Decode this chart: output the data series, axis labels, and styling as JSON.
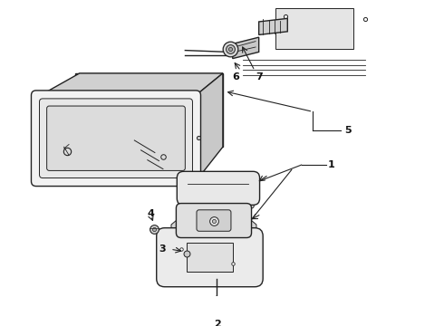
{
  "background_color": "#ffffff",
  "line_color": "#222222",
  "label_color": "#111111",
  "fig_width": 4.9,
  "fig_height": 3.6,
  "dpi": 100,
  "label_fontsize": 8,
  "label_fontweight": "bold"
}
